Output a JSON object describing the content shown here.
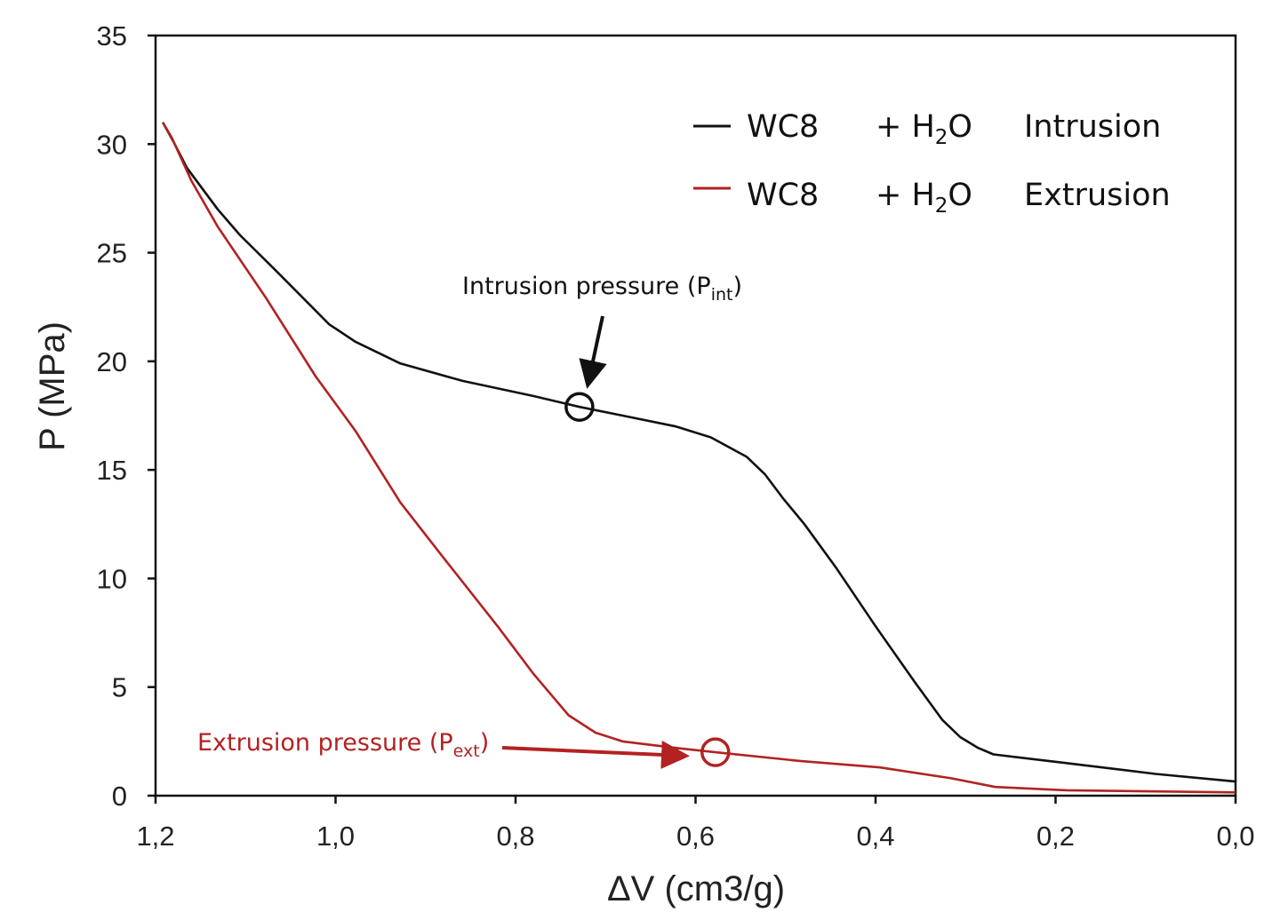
{
  "chart_data": {
    "type": "line",
    "xlabel": "ΔV (cm3/g)",
    "ylabel": "P (MPa)",
    "xlim": [
      1.2,
      0.0
    ],
    "x_reversed": true,
    "ylim": [
      0,
      35
    ],
    "xticks": [
      "1,2",
      "1,0",
      "0,8",
      "0,6",
      "0,4",
      "0,2",
      "0,0"
    ],
    "xtick_values": [
      1.2,
      1.0,
      0.8,
      0.6,
      0.4,
      0.2,
      0.0
    ],
    "yticks": [
      "0",
      "5",
      "10",
      "15",
      "20",
      "25",
      "30",
      "35"
    ],
    "ytick_values": [
      0,
      5,
      10,
      15,
      20,
      25,
      30,
      35
    ],
    "grid": false,
    "legend_position": "top-right",
    "series": [
      {
        "name": "Intrusion",
        "legend": {
          "sample": "WC8",
          "medium": "+ H",
          "sub": "2",
          "medium_end": "O",
          "label": "Intrusion"
        },
        "color": "#111111",
        "x": [
          1.192,
          1.18,
          1.165,
          1.131,
          1.106,
          1.067,
          1.007,
          0.978,
          0.928,
          0.859,
          0.78,
          0.729,
          0.681,
          0.622,
          0.583,
          0.543,
          0.523,
          0.503,
          0.479,
          0.444,
          0.4,
          0.356,
          0.326,
          0.306,
          0.286,
          0.269,
          0.188,
          0.089,
          0.0
        ],
        "y": [
          31.0,
          30.1,
          28.9,
          27.0,
          25.8,
          24.2,
          21.7,
          20.9,
          19.9,
          19.1,
          18.4,
          17.9,
          17.5,
          17.0,
          16.5,
          15.6,
          14.8,
          13.7,
          12.5,
          10.5,
          7.8,
          5.2,
          3.5,
          2.7,
          2.2,
          1.9,
          1.5,
          1.0,
          0.65
        ]
      },
      {
        "name": "Extrusion",
        "legend": {
          "sample": "WC8",
          "medium": "+ H",
          "sub": "2",
          "medium_end": "O",
          "label": "Extrusion"
        },
        "color": "#b22222",
        "x": [
          1.192,
          1.182,
          1.16,
          1.131,
          1.077,
          1.022,
          0.978,
          0.928,
          0.879,
          0.82,
          0.78,
          0.741,
          0.711,
          0.681,
          0.622,
          0.578,
          0.484,
          0.395,
          0.316,
          0.267,
          0.188,
          0.0
        ],
        "y": [
          31.0,
          30.3,
          28.3,
          26.2,
          22.9,
          19.3,
          16.8,
          13.5,
          10.9,
          7.8,
          5.6,
          3.7,
          2.9,
          2.5,
          2.2,
          2.0,
          1.6,
          1.3,
          0.8,
          0.4,
          0.25,
          0.15
        ]
      }
    ],
    "annotations": [
      {
        "text": "Intrusion pressure (P",
        "sub": "int",
        "end": ")",
        "color": "#111111",
        "marker": {
          "x": 0.729,
          "y": 17.9
        }
      },
      {
        "text": "Extrusion pressure (P",
        "sub": "ext",
        "end": ")",
        "color": "#b22222",
        "marker": {
          "x": 0.578,
          "y": 2.0
        }
      }
    ]
  }
}
